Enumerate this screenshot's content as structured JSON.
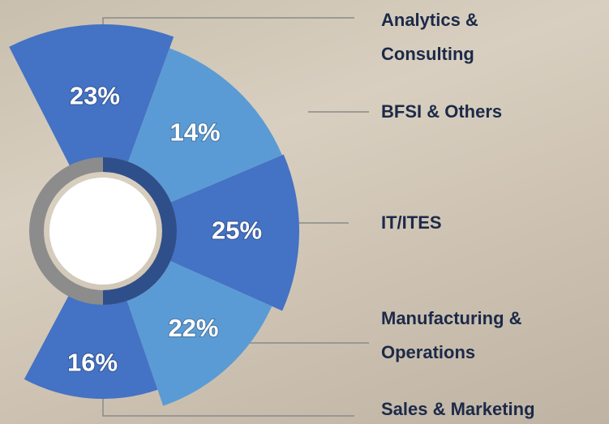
{
  "chart_data": {
    "type": "rose",
    "categories": [
      "Analytics & Consulting",
      "BFSI & Others",
      "IT/ITES",
      "Manufacturing & Operations",
      "Sales & Marketing"
    ],
    "values": [
      23,
      14,
      25,
      22,
      16
    ],
    "value_labels": [
      "23%",
      "14%",
      "25%",
      "22%",
      "16%"
    ],
    "colors": [
      "#4472c4",
      "#5b9bd5",
      "#4472c4",
      "#5b9bd5",
      "#4472c4"
    ]
  }
}
